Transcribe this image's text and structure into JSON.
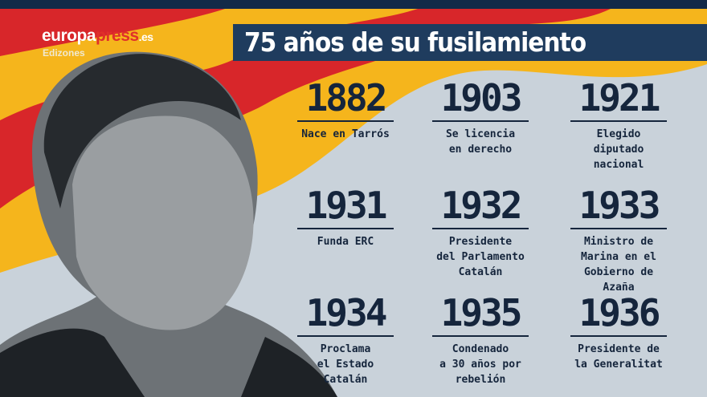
{
  "brand": {
    "name_part1": "europa",
    "name_part2": "press",
    "name_part3": ".es",
    "sub": "Edizones"
  },
  "title": "75 años de su fusilamiento",
  "colors": {
    "navy": "#1f3c5e",
    "text": "#15253c",
    "flag_red": "#d8262a",
    "flag_yellow": "#f5b51c"
  },
  "events": [
    {
      "year": "1882",
      "desc": "Nace en Tarrós"
    },
    {
      "year": "1903",
      "desc": "Se licencia\nen derecho"
    },
    {
      "year": "1921",
      "desc": "Elegido\ndiputado\nnacional"
    },
    {
      "year": "1931",
      "desc": "Funda ERC"
    },
    {
      "year": "1932",
      "desc": "Presidente\ndel Parlamento\nCatalán"
    },
    {
      "year": "1933",
      "desc": "Ministro de\nMarina en el\nGobierno de\nAzaña"
    },
    {
      "year": "1934",
      "desc": "Proclama\nel Estado\nCatalán"
    },
    {
      "year": "1935",
      "desc": "Condenado\na 30 años por\nrebelión"
    },
    {
      "year": "1936",
      "desc": "Presidente de\nla Generalitat"
    }
  ]
}
